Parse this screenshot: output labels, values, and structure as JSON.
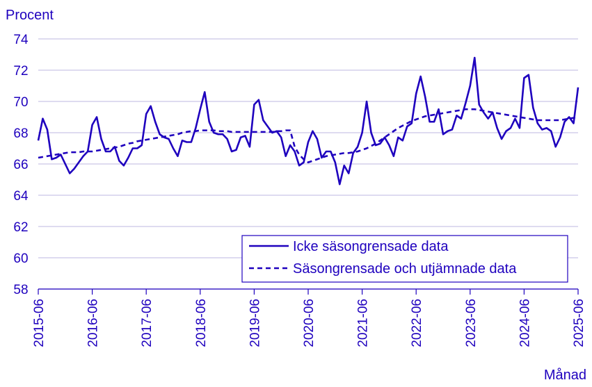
{
  "chart_data": {
    "type": "line",
    "ylabel": "Procent",
    "xlabel": "Månad",
    "ylim": [
      58,
      74
    ],
    "yticks": [
      58,
      60,
      62,
      64,
      66,
      68,
      70,
      72,
      74
    ],
    "xlim": [
      "2015-06",
      "2025-06"
    ],
    "xticks": [
      "2015-06",
      "2016-06",
      "2017-06",
      "2018-06",
      "2019-06",
      "2020-06",
      "2021-06",
      "2022-06",
      "2023-06",
      "2024-06",
      "2025-06"
    ],
    "grid": "horizontal",
    "legend_position": "bottom-right",
    "colors": {
      "accent": "#1e00be",
      "grid": "#c9c5e6"
    },
    "series": [
      {
        "name": "Icke säsongrensade data",
        "style": "solid",
        "start": "2015-06",
        "values": [
          67.5,
          68.9,
          68.2,
          66.3,
          66.4,
          66.6,
          66.0,
          65.4,
          65.7,
          66.1,
          66.5,
          66.8,
          68.5,
          69.0,
          67.6,
          66.8,
          66.8,
          67.1,
          66.2,
          65.9,
          66.4,
          67.0,
          67.0,
          67.2,
          69.2,
          69.7,
          68.7,
          67.9,
          67.7,
          67.6,
          67.0,
          66.5,
          67.5,
          67.4,
          67.4,
          68.3,
          69.5,
          70.6,
          68.7,
          68.0,
          67.9,
          67.9,
          67.6,
          66.8,
          66.9,
          67.7,
          67.8,
          67.1,
          69.8,
          70.1,
          68.8,
          68.4,
          68.0,
          68.1,
          67.7,
          66.5,
          67.2,
          66.8,
          65.9,
          66.1,
          67.4,
          68.1,
          67.6,
          66.4,
          66.8,
          66.8,
          66.1,
          64.7,
          65.9,
          65.4,
          66.7,
          67.1,
          68.0,
          70.0,
          68.0,
          67.2,
          67.3,
          67.7,
          67.2,
          66.5,
          67.7,
          67.5,
          68.4,
          68.6,
          70.5,
          71.6,
          70.3,
          68.7,
          68.7,
          69.5,
          67.9,
          68.1,
          68.2,
          69.1,
          68.9,
          69.9,
          71.0,
          72.8,
          69.8,
          69.3,
          68.9,
          69.3,
          68.3,
          67.6,
          68.1,
          68.3,
          68.9,
          68.3,
          71.5,
          71.7,
          69.6,
          68.6,
          68.2,
          68.3,
          68.1,
          67.1,
          67.7,
          68.7,
          69.0,
          68.6,
          70.9
        ]
      },
      {
        "name": "Säsongrensade och utjämnade data",
        "style": "dashed",
        "start": "2015-06",
        "values": [
          66.4,
          66.45,
          66.5,
          66.55,
          66.6,
          66.65,
          66.7,
          66.75,
          66.75,
          66.75,
          66.8,
          66.8,
          66.8,
          66.85,
          66.9,
          66.95,
          67.0,
          67.05,
          67.1,
          67.2,
          67.3,
          67.35,
          67.45,
          67.5,
          67.55,
          67.6,
          67.65,
          67.7,
          67.75,
          67.8,
          67.85,
          67.9,
          68.0,
          68.05,
          68.1,
          68.1,
          68.15,
          68.15,
          68.15,
          68.15,
          68.1,
          68.1,
          68.1,
          68.05,
          68.05,
          68.05,
          68.05,
          68.05,
          68.05,
          68.05,
          68.05,
          68.05,
          68.05,
          68.1,
          68.1,
          68.15,
          68.15,
          67.1,
          66.6,
          66.3,
          66.1,
          66.2,
          66.3,
          66.4,
          66.5,
          66.55,
          66.6,
          66.65,
          66.7,
          66.7,
          66.75,
          66.8,
          66.9,
          67.0,
          67.15,
          67.3,
          67.5,
          67.7,
          67.9,
          68.1,
          68.3,
          68.45,
          68.6,
          68.75,
          68.85,
          68.95,
          69.05,
          69.1,
          69.15,
          69.2,
          69.25,
          69.3,
          69.35,
          69.4,
          69.45,
          69.5,
          69.5,
          69.5,
          69.45,
          69.4,
          69.35,
          69.3,
          69.25,
          69.2,
          69.15,
          69.1,
          69.05,
          69.0,
          68.95,
          68.9,
          68.85,
          68.8,
          68.8,
          68.8,
          68.8,
          68.8,
          68.8,
          68.85,
          68.9,
          68.95,
          69.05
        ]
      }
    ]
  }
}
